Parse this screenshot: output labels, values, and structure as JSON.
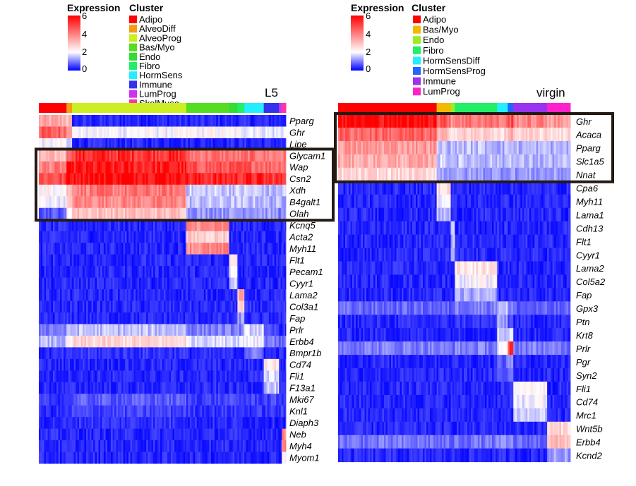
{
  "chart_data": [
    {
      "type": "heatmap",
      "panel": "L5",
      "title": "L5",
      "legend": {
        "expression_title": "Expression",
        "cluster_title": "Cluster",
        "scale_ticks": [
          "6",
          "4",
          "2",
          "0"
        ],
        "scale_min": 0,
        "scale_max": 6
      },
      "clusters": [
        {
          "name": "Adipo",
          "color": "#ff0000",
          "weight": 40
        },
        {
          "name": "AlveoDiff",
          "color": "#f39c12",
          "weight": 8
        },
        {
          "name": "AlveoProg",
          "color": "#ccee22",
          "weight": 165
        },
        {
          "name": "Bas/Myo",
          "color": "#55dd22",
          "weight": 62
        },
        {
          "name": "Endo",
          "color": "#33dd33",
          "weight": 12
        },
        {
          "name": "Fibro",
          "color": "#22ee66",
          "weight": 10
        },
        {
          "name": "HormSens",
          "color": "#22eeff",
          "weight": 28
        },
        {
          "name": "Immune",
          "color": "#3333ee",
          "weight": 22
        },
        {
          "name": "LumProg",
          "color": "#cc33ee",
          "weight": 4
        },
        {
          "name": "SkelMusc",
          "color": "#ff33aa",
          "weight": 6
        }
      ],
      "box": {
        "from_gene": "Glycam1",
        "to_gene": "Olah"
      },
      "genes": [
        {
          "name": "Pparg",
          "values": [
            3.3,
            3.0,
            0.3,
            0.3,
            0.3,
            0.3,
            0.3,
            0.3,
            0.3,
            0.3
          ]
        },
        {
          "name": "Ghr",
          "values": [
            4.5,
            4.0,
            2.0,
            2.1,
            2.0,
            2.0,
            2.0,
            1.8,
            1.8,
            2.0
          ]
        },
        {
          "name": "Lipe",
          "values": [
            2.0,
            1.5,
            0.3,
            0.3,
            0.3,
            0.3,
            0.3,
            0.3,
            0.3,
            0.3
          ]
        },
        {
          "name": "Glycam1",
          "values": [
            3.0,
            4.8,
            5.3,
            4.2,
            4.0,
            4.0,
            4.2,
            4.0,
            4.0,
            4.0
          ]
        },
        {
          "name": "Wap",
          "values": [
            4.0,
            5.5,
            5.5,
            4.6,
            4.6,
            4.6,
            4.6,
            4.4,
            4.4,
            4.4
          ]
        },
        {
          "name": "Csn2",
          "values": [
            4.8,
            6.0,
            6.0,
            5.4,
            5.4,
            5.4,
            5.4,
            5.2,
            5.2,
            5.2
          ]
        },
        {
          "name": "Xdh",
          "values": [
            2.2,
            3.0,
            4.1,
            1.6,
            1.6,
            1.6,
            1.6,
            1.4,
            1.4,
            1.6
          ]
        },
        {
          "name": "B4galt1",
          "values": [
            2.0,
            2.6,
            3.9,
            1.5,
            1.5,
            1.5,
            1.5,
            1.4,
            1.4,
            1.4
          ]
        },
        {
          "name": "Olah",
          "values": [
            0.7,
            2.2,
            3.0,
            1.2,
            1.2,
            1.2,
            1.3,
            1.2,
            1.0,
            1.0
          ]
        },
        {
          "name": "Kcnq5",
          "values": [
            0.3,
            0.3,
            0.3,
            3.8,
            0.3,
            0.3,
            0.3,
            0.3,
            0.3,
            0.3
          ]
        },
        {
          "name": "Acta2",
          "values": [
            0.3,
            0.3,
            0.3,
            2.8,
            0.3,
            0.3,
            0.3,
            0.3,
            0.3,
            0.3
          ]
        },
        {
          "name": "Myh11",
          "values": [
            0.3,
            0.3,
            0.3,
            3.8,
            0.3,
            0.3,
            0.3,
            0.3,
            0.3,
            0.3
          ]
        },
        {
          "name": "Flt1",
          "values": [
            0.3,
            0.3,
            0.3,
            0.3,
            2.2,
            0.3,
            0.3,
            0.3,
            0.3,
            0.3
          ]
        },
        {
          "name": "Pecam1",
          "values": [
            0.3,
            0.3,
            0.3,
            0.3,
            2.0,
            0.3,
            0.3,
            0.3,
            0.3,
            0.3
          ]
        },
        {
          "name": "Cyyr1",
          "values": [
            0.3,
            0.3,
            0.3,
            0.3,
            1.5,
            0.3,
            0.3,
            0.3,
            0.3,
            0.3
          ]
        },
        {
          "name": "Lama2",
          "values": [
            0.3,
            0.3,
            0.3,
            0.3,
            0.3,
            3.2,
            0.3,
            0.3,
            0.3,
            0.3
          ]
        },
        {
          "name": "Col3a1",
          "values": [
            0.3,
            0.3,
            0.3,
            0.3,
            0.3,
            2.6,
            0.3,
            0.3,
            0.3,
            0.3
          ]
        },
        {
          "name": "Fap",
          "values": [
            0.3,
            0.3,
            0.3,
            0.3,
            0.3,
            1.2,
            0.3,
            0.3,
            0.3,
            0.3
          ]
        },
        {
          "name": "Prlr",
          "values": [
            1.0,
            1.3,
            1.5,
            1.0,
            1.0,
            1.0,
            1.7,
            0.5,
            0.3,
            0.3
          ]
        },
        {
          "name": "Erbb4",
          "values": [
            1.4,
            2.0,
            2.6,
            1.8,
            1.8,
            1.8,
            2.0,
            1.0,
            0.8,
            0.8
          ]
        },
        {
          "name": "Bmpr1b",
          "values": [
            0.3,
            0.3,
            0.4,
            0.3,
            0.3,
            0.3,
            0.9,
            0.3,
            0.3,
            0.3
          ]
        },
        {
          "name": "Cd74",
          "values": [
            0.3,
            0.3,
            0.3,
            0.3,
            0.3,
            0.3,
            0.3,
            2.4,
            0.3,
            0.3
          ]
        },
        {
          "name": "Fli1",
          "values": [
            0.3,
            0.3,
            0.3,
            0.3,
            0.3,
            0.3,
            0.3,
            1.8,
            0.3,
            0.3
          ]
        },
        {
          "name": "F13a1",
          "values": [
            0.3,
            0.3,
            0.3,
            0.3,
            0.3,
            0.3,
            0.3,
            1.5,
            0.3,
            0.3
          ]
        },
        {
          "name": "Mki67",
          "values": [
            0.4,
            0.5,
            0.7,
            0.5,
            0.5,
            0.5,
            0.5,
            0.5,
            0.5,
            0.5
          ]
        },
        {
          "name": "Knl1",
          "values": [
            0.3,
            0.4,
            0.5,
            0.4,
            0.4,
            0.4,
            0.4,
            0.4,
            0.4,
            0.4
          ]
        },
        {
          "name": "Diaph3",
          "values": [
            0.3,
            0.3,
            0.4,
            0.3,
            0.3,
            0.3,
            0.3,
            0.3,
            0.3,
            0.3
          ]
        },
        {
          "name": "Neb",
          "values": [
            0.3,
            0.3,
            0.3,
            0.3,
            0.3,
            0.3,
            0.3,
            0.3,
            0.3,
            4.0
          ]
        },
        {
          "name": "Myh4",
          "values": [
            0.3,
            0.3,
            0.3,
            0.3,
            0.3,
            0.3,
            0.3,
            0.3,
            0.3,
            3.8
          ]
        },
        {
          "name": "Myom1",
          "values": [
            0.3,
            0.3,
            0.3,
            0.3,
            0.3,
            0.3,
            0.3,
            0.3,
            0.3,
            2.2
          ]
        }
      ]
    },
    {
      "type": "heatmap",
      "panel": "virgin",
      "title": "virgin",
      "legend": {
        "expression_title": "Expression",
        "cluster_title": "Cluster",
        "scale_ticks": [
          "6",
          "4",
          "2",
          "0"
        ],
        "scale_min": 0,
        "scale_max": 6
      },
      "clusters": [
        {
          "name": "Adipo",
          "color": "#ff0000",
          "weight": 140
        },
        {
          "name": "Bas/Myo",
          "color": "#f5b800",
          "weight": 20
        },
        {
          "name": "Endo",
          "color": "#99ee22",
          "weight": 6
        },
        {
          "name": "Fibro",
          "color": "#22ee66",
          "weight": 60
        },
        {
          "name": "HormSensDiff",
          "color": "#22eeff",
          "weight": 15
        },
        {
          "name": "HormSensProg",
          "color": "#2266ff",
          "weight": 8
        },
        {
          "name": "Immune",
          "color": "#9933ee",
          "weight": 48
        },
        {
          "name": "LumProg",
          "color": "#ff22cc",
          "weight": 33
        }
      ],
      "box": {
        "from_gene": "Ghr",
        "to_gene": "Nnat"
      },
      "genes": [
        {
          "name": "Ghr",
          "values": [
            6.0,
            4.6,
            3.8,
            4.2,
            4.0,
            4.8,
            3.9,
            3.6
          ]
        },
        {
          "name": "Acaca",
          "values": [
            4.4,
            3.0,
            2.7,
            2.7,
            2.6,
            3.2,
            2.6,
            2.6
          ]
        },
        {
          "name": "Pparg",
          "values": [
            3.6,
            1.5,
            1.4,
            1.5,
            1.4,
            1.6,
            1.4,
            1.4
          ]
        },
        {
          "name": "Slc1a5",
          "values": [
            3.3,
            1.6,
            1.5,
            1.5,
            1.4,
            1.7,
            1.4,
            1.4
          ]
        },
        {
          "name": "Nnat",
          "values": [
            2.6,
            1.3,
            1.3,
            1.2,
            1.2,
            1.3,
            1.2,
            1.2
          ]
        },
        {
          "name": "Cpa6",
          "values": [
            0.3,
            2.6,
            0.3,
            0.3,
            0.3,
            0.3,
            0.3,
            0.3
          ]
        },
        {
          "name": "Myh11",
          "values": [
            0.3,
            2.0,
            0.3,
            0.3,
            0.3,
            0.3,
            0.3,
            0.3
          ]
        },
        {
          "name": "Lama1",
          "values": [
            0.3,
            1.4,
            0.3,
            0.3,
            0.3,
            0.3,
            0.3,
            0.3
          ]
        },
        {
          "name": "Cdh13",
          "values": [
            0.3,
            0.3,
            1.6,
            0.3,
            0.3,
            0.3,
            0.3,
            0.3
          ]
        },
        {
          "name": "Flt1",
          "values": [
            0.3,
            0.3,
            1.4,
            0.3,
            0.3,
            0.3,
            0.3,
            0.3
          ]
        },
        {
          "name": "Cyyr1",
          "values": [
            0.3,
            0.3,
            1.2,
            0.3,
            0.3,
            0.3,
            0.3,
            0.3
          ]
        },
        {
          "name": "Lama2",
          "values": [
            0.3,
            0.3,
            0.3,
            2.4,
            0.3,
            0.3,
            0.3,
            0.3
          ]
        },
        {
          "name": "Col5a2",
          "values": [
            0.3,
            0.3,
            0.3,
            2.0,
            0.3,
            0.3,
            0.3,
            0.3
          ]
        },
        {
          "name": "Fap",
          "values": [
            0.3,
            0.3,
            0.3,
            1.3,
            0.3,
            0.3,
            0.3,
            0.3
          ]
        },
        {
          "name": "Gpx3",
          "values": [
            0.8,
            0.7,
            0.8,
            1.0,
            1.6,
            0.9,
            0.7,
            0.7
          ]
        },
        {
          "name": "Ptn",
          "values": [
            0.3,
            0.3,
            0.3,
            0.4,
            1.2,
            0.6,
            0.3,
            0.3
          ]
        },
        {
          "name": "Krt8",
          "values": [
            0.3,
            0.3,
            0.3,
            0.3,
            1.6,
            1.8,
            0.3,
            0.3
          ]
        },
        {
          "name": "Prlr",
          "values": [
            1.0,
            0.9,
            0.9,
            1.0,
            1.8,
            5.0,
            1.0,
            0.9
          ]
        },
        {
          "name": "Pgr",
          "values": [
            0.3,
            0.3,
            0.3,
            0.3,
            0.7,
            1.2,
            0.3,
            0.3
          ]
        },
        {
          "name": "Syn2",
          "values": [
            0.3,
            0.3,
            0.3,
            0.3,
            0.6,
            1.0,
            0.3,
            0.3
          ]
        },
        {
          "name": "Fli1",
          "values": [
            0.3,
            0.3,
            0.3,
            0.3,
            0.3,
            0.3,
            2.2,
            0.3
          ]
        },
        {
          "name": "Cd74",
          "values": [
            0.3,
            0.3,
            0.3,
            0.3,
            0.3,
            0.3,
            1.9,
            0.3
          ]
        },
        {
          "name": "Mrc1",
          "values": [
            0.3,
            0.3,
            0.3,
            0.3,
            0.3,
            0.3,
            1.6,
            0.3
          ]
        },
        {
          "name": "Wnt5b",
          "values": [
            0.3,
            0.3,
            0.3,
            0.3,
            0.3,
            0.3,
            0.3,
            2.6
          ]
        },
        {
          "name": "Erbb4",
          "values": [
            0.9,
            0.8,
            0.8,
            0.9,
            1.0,
            1.0,
            0.8,
            3.0
          ]
        },
        {
          "name": "Kcnd2",
          "values": [
            0.3,
            0.3,
            0.3,
            0.3,
            0.3,
            0.3,
            0.3,
            1.2
          ]
        }
      ]
    }
  ]
}
